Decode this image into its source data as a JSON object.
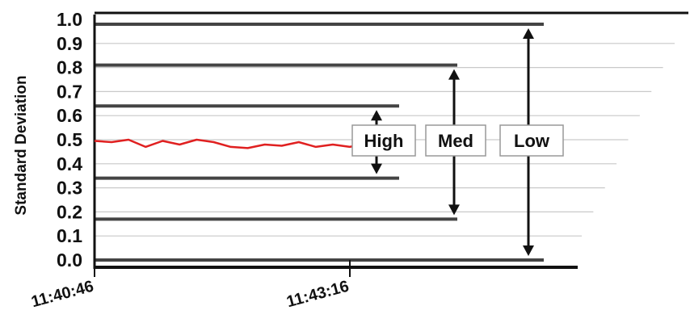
{
  "chart_data": {
    "type": "line",
    "ylabel": "Standard Deviation",
    "xlabel": "",
    "ylim": [
      0,
      1
    ],
    "y_ticks": [
      "0.0",
      "0.1",
      "0.2",
      "0.3",
      "0.4",
      "0.5",
      "0.6",
      "0.7",
      "0.8",
      "0.9",
      "1.0"
    ],
    "x_ticks": [
      "11:40:46",
      "11:43:16"
    ],
    "grid": true,
    "series": [
      {
        "color": "#e02020",
        "x": [
          "11:40:46",
          "11:40:56",
          "11:41:06",
          "11:41:16",
          "11:41:26",
          "11:41:36",
          "11:41:46",
          "11:41:56",
          "11:42:06",
          "11:42:16",
          "11:42:26",
          "11:42:36",
          "11:42:46",
          "11:42:56",
          "11:43:06",
          "11:43:16",
          "11:43:26",
          "11:43:36"
        ],
        "y": [
          0.495,
          0.49,
          0.5,
          0.47,
          0.495,
          0.48,
          0.5,
          0.49,
          0.47,
          0.465,
          0.48,
          0.475,
          0.49,
          0.47,
          0.48,
          0.47,
          0.485,
          0.48
        ]
      }
    ],
    "bands": [
      {
        "label": "High",
        "low": 0.34,
        "high": 0.64
      },
      {
        "label": "Med",
        "low": 0.17,
        "high": 0.81
      },
      {
        "label": "Low",
        "low": 0.0,
        "high": 0.98
      }
    ]
  }
}
